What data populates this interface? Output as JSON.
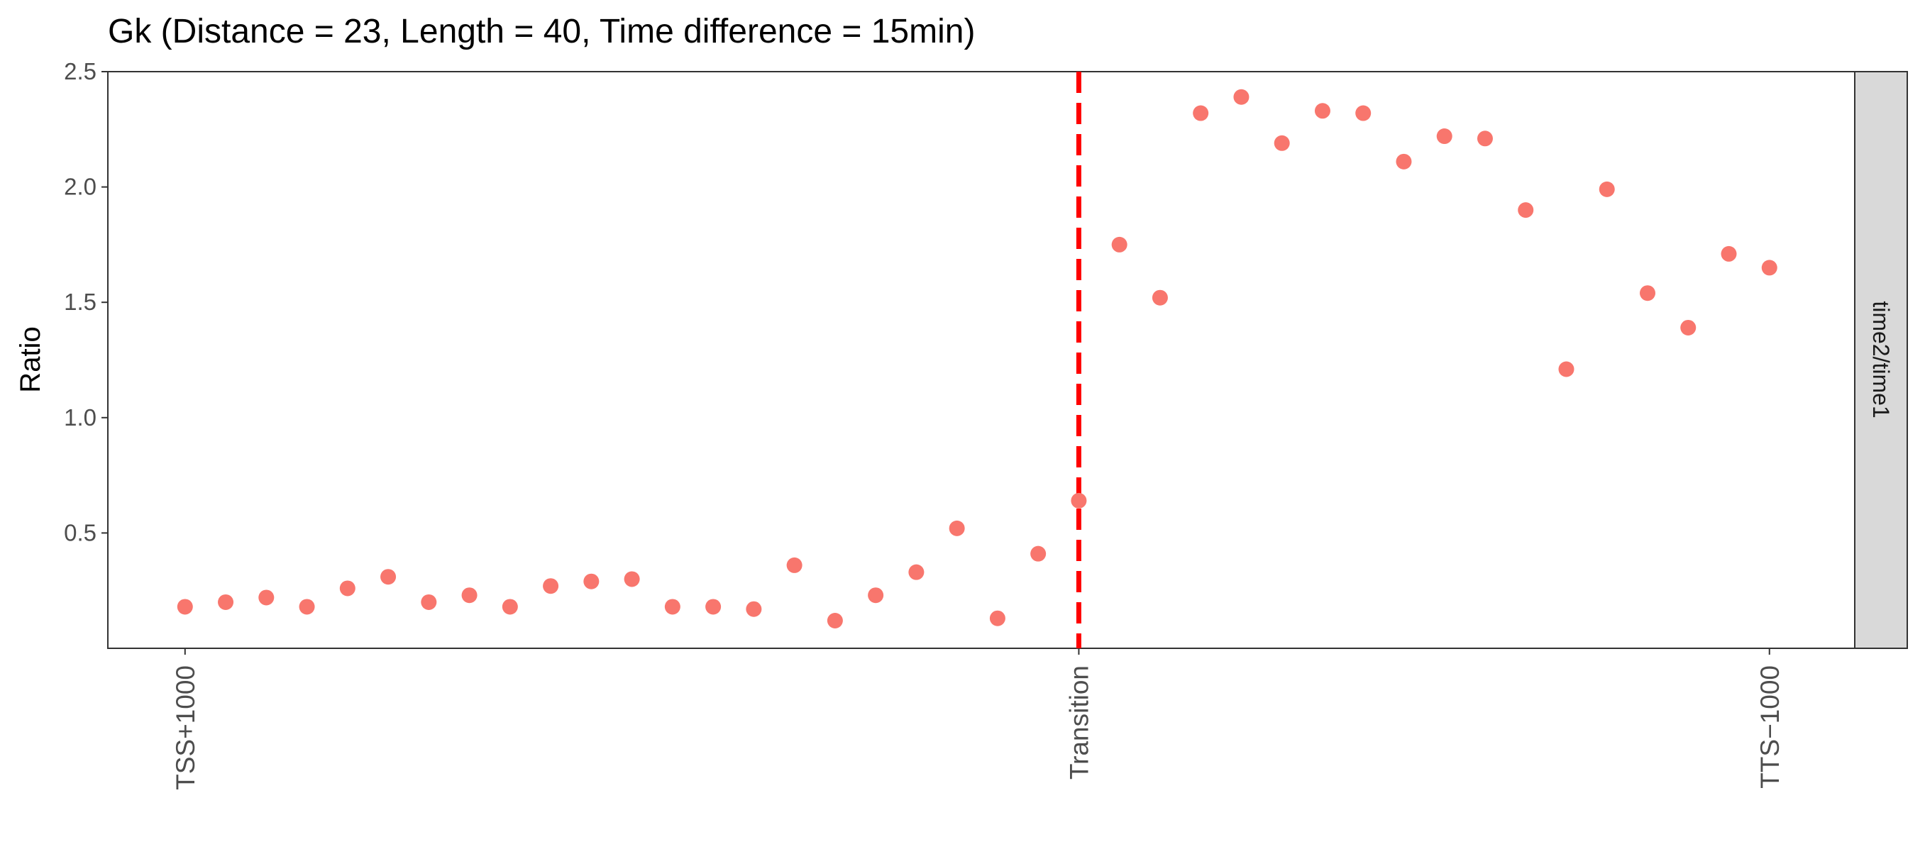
{
  "chart_data": {
    "type": "scatter",
    "title": "Gk (Distance = 23, Length = 40, Time difference = 15min)",
    "ylabel": "Ratio",
    "xlabel": "",
    "ylim": [
      0.0,
      2.5
    ],
    "xlim": [
      -1.9,
      41.1
    ],
    "yticks": [
      0.5,
      1.0,
      1.5,
      2.0,
      2.5
    ],
    "ytick_labels": [
      "0.5",
      "1.0",
      "1.5",
      "2.0",
      "2.5"
    ],
    "xticks": [
      {
        "x": 0,
        "label": "TSS+1000"
      },
      {
        "x": 22,
        "label": "Transition"
      },
      {
        "x": 39,
        "label": "TTS−1000"
      }
    ],
    "facet_label": "time2/time1",
    "point_color": "#F8766D",
    "vline": {
      "x": 22,
      "color": "#FF0000",
      "style": "dashed"
    },
    "x": [
      0,
      1,
      2,
      3,
      4,
      5,
      6,
      7,
      8,
      9,
      10,
      11,
      12,
      13,
      14,
      15,
      16,
      17,
      18,
      19,
      20,
      21,
      22,
      23,
      24,
      25,
      26,
      27,
      28,
      29,
      30,
      31,
      32,
      33,
      34,
      35,
      36,
      37,
      38,
      39
    ],
    "y": [
      0.18,
      0.2,
      0.22,
      0.18,
      0.26,
      0.31,
      0.2,
      0.23,
      0.18,
      0.27,
      0.29,
      0.3,
      0.18,
      0.18,
      0.17,
      0.36,
      0.12,
      0.23,
      0.33,
      0.52,
      0.13,
      0.41,
      0.64,
      1.75,
      1.52,
      2.32,
      2.39,
      2.19,
      2.33,
      2.32,
      2.11,
      2.22,
      2.21,
      1.9,
      1.21,
      1.99,
      1.54,
      1.39,
      1.71,
      1.65
    ]
  }
}
